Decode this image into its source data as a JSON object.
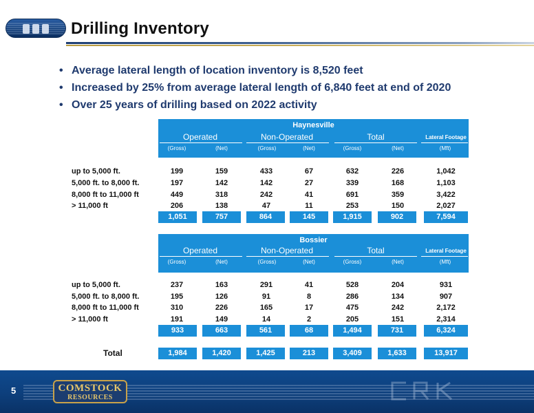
{
  "header": {
    "title": "Drilling Inventory",
    "logo_icon": "crk-oval-logo-icon"
  },
  "bullets": [
    "Average lateral length of location inventory is 8,520 feet",
    "Increased by 25% from average lateral length of 6,840 feet at end of 2020",
    "Over 25 years of drilling based on 2022 activity"
  ],
  "columns": {
    "groups": {
      "operated": "Operated",
      "non_operated": "Non-Operated",
      "total": "Total",
      "lateral": "Lateral Footage"
    },
    "sub": [
      "(Gross)",
      "(Net)",
      "(Gross)",
      "(Net)",
      "(Gross)",
      "(Net)",
      "(Mft)"
    ]
  },
  "haynesville": {
    "title": "Haynesville",
    "rows": [
      {
        "label": "up to 5,000 ft.",
        "values": [
          "199",
          "159",
          "433",
          "67",
          "632",
          "226",
          "1,042"
        ]
      },
      {
        "label": "5,000 ft. to 8,000 ft.",
        "values": [
          "197",
          "142",
          "142",
          "27",
          "339",
          "168",
          "1,103"
        ]
      },
      {
        "label": "8,000 ft to 11,000 ft",
        "values": [
          "449",
          "318",
          "242",
          "41",
          "691",
          "359",
          "3,422"
        ]
      },
      {
        "label": "> 11,000 ft",
        "values": [
          "206",
          "138",
          "47",
          "11",
          "253",
          "150",
          "2,027"
        ]
      }
    ],
    "totals": [
      "1,051",
      "757",
      "864",
      "145",
      "1,915",
      "902",
      "7,594"
    ]
  },
  "bossier": {
    "title": "Bossier",
    "rows": [
      {
        "label": "up to 5,000 ft.",
        "values": [
          "237",
          "163",
          "291",
          "41",
          "528",
          "204",
          "931"
        ]
      },
      {
        "label": "5,000 ft. to 8,000 ft.",
        "values": [
          "195",
          "126",
          "91",
          "8",
          "286",
          "134",
          "907"
        ]
      },
      {
        "label": "8,000 ft to 11,000 ft",
        "values": [
          "310",
          "226",
          "165",
          "17",
          "475",
          "242",
          "2,172"
        ]
      },
      {
        "label": "> 11,000 ft",
        "values": [
          "191",
          "149",
          "14",
          "2",
          "205",
          "151",
          "2,314"
        ]
      }
    ],
    "totals": [
      "933",
      "663",
      "561",
      "68",
      "1,494",
      "731",
      "6,324"
    ]
  },
  "grand_total": {
    "label": "Total",
    "values": [
      "1,984",
      "1,420",
      "1,425",
      "213",
      "3,409",
      "1,633",
      "13,917"
    ]
  },
  "footer": {
    "page_number": "5",
    "brand_line1": "COMSTOCK",
    "brand_line2": "RESOURCES",
    "watermark_icon": "crk-watermark-icon"
  },
  "colors": {
    "accent_blue": "#1b8fd8",
    "bullet_text": "#1f3a6e",
    "footer_navy": "#0d3f7c",
    "gold": "#c9a24a"
  }
}
